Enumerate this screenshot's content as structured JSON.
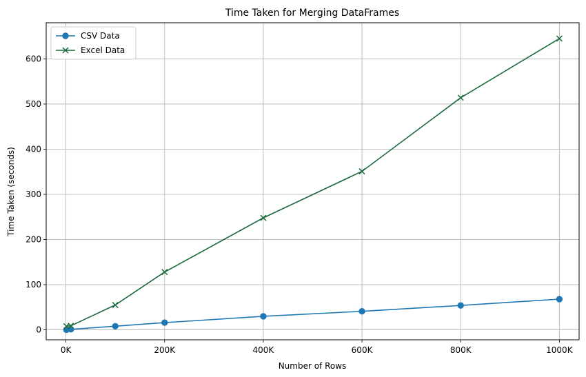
{
  "chart_data": {
    "type": "line",
    "title": "Time Taken for Merging DataFrames",
    "xlabel": "Number of Rows",
    "ylabel": "Time Taken (seconds)",
    "xlim": [
      -40000,
      1040000
    ],
    "ylim": [
      -22,
      680
    ],
    "xticks": [
      0,
      200000,
      400000,
      600000,
      800000,
      1000000
    ],
    "xtick_labels": [
      "0K",
      "200K",
      "400K",
      "600K",
      "800K",
      "1000K"
    ],
    "yticks": [
      0,
      100,
      200,
      300,
      400,
      500,
      600
    ],
    "ytick_labels": [
      "0",
      "100",
      "200",
      "300",
      "400",
      "500",
      "600"
    ],
    "grid": true,
    "legend_position": "top-left",
    "series": [
      {
        "name": "CSV Data",
        "color": "#1f77b4",
        "marker": "circle",
        "x": [
          1000,
          10000,
          100000,
          200000,
          400000,
          600000,
          800000,
          1000000
        ],
        "y": [
          0.2,
          1.2,
          8,
          16,
          30,
          41,
          54,
          68
        ]
      },
      {
        "name": "Excel Data",
        "color": "#1a6b3a",
        "marker": "x",
        "x": [
          1000,
          10000,
          100000,
          200000,
          400000,
          600000,
          800000,
          1000000
        ],
        "y": [
          8,
          9,
          55,
          128,
          248,
          351,
          514,
          645
        ]
      }
    ]
  }
}
